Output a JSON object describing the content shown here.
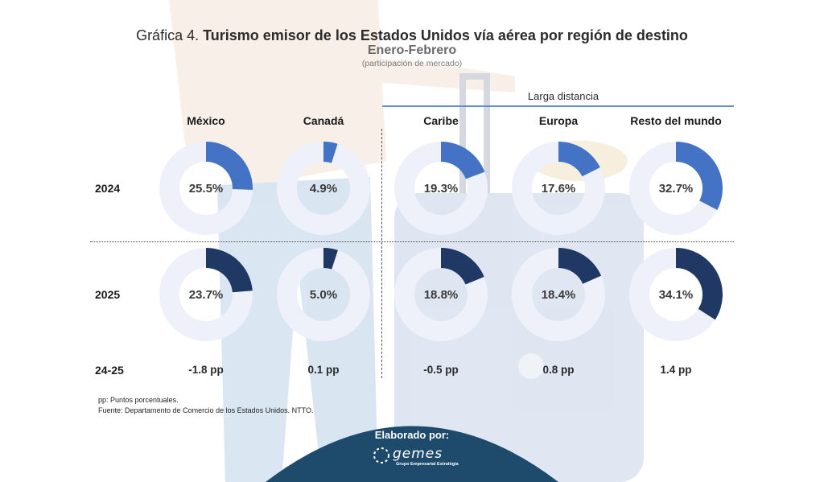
{
  "header": {
    "title_prefix": "Gráfica 4.",
    "title_main": "Turismo emisor de los Estados Unidos vía aérea por región de destino",
    "subtitle": "Enero-Febrero",
    "note": "(participación de mercado)"
  },
  "group_label": "Larga distancia",
  "row_labels": {
    "y2024": "2024",
    "y2025": "2025",
    "diff": "24-25"
  },
  "chart_data": {
    "type": "pie",
    "variant": "donut",
    "categories": [
      "México",
      "Canadá",
      "Caribe",
      "Europa",
      "Resto del mundo"
    ],
    "series": [
      {
        "name": "2024",
        "values": [
          25.5,
          4.9,
          19.3,
          17.6,
          32.7
        ],
        "labels": [
          "25.5%",
          "4.9%",
          "19.3%",
          "17.6%",
          "32.7%"
        ],
        "color": "#4472c4"
      },
      {
        "name": "2025",
        "values": [
          23.7,
          5.0,
          18.8,
          18.4,
          34.1
        ],
        "labels": [
          "23.7%",
          "5.0%",
          "18.8%",
          "18.4%",
          "34.1%"
        ],
        "color": "#1f3864"
      }
    ],
    "differences": [
      "-1.8 pp",
      "0.1 pp",
      "-0.5 pp",
      "0.8 pp",
      "1.4 pp"
    ],
    "remainder_color": "#eef1f9"
  },
  "footnotes": {
    "pp": "pp: Puntos porcentuales.",
    "source": "Fuente: Departamento de Comercio de los Estados Unidos. NTTO."
  },
  "badge": {
    "label": "Elaborado por:",
    "logo_text": "gemes",
    "logo_sub": "Grupo Empresarial Estratégia",
    "color": "#1e4a6b"
  }
}
